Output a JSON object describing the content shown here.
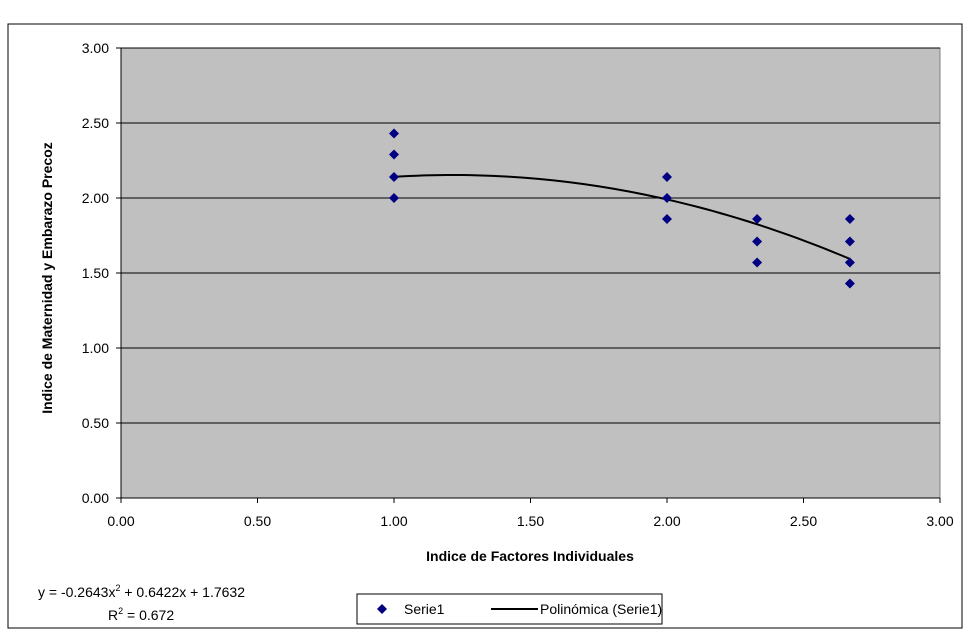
{
  "chart_data": {
    "type": "scatter",
    "title": "",
    "xlabel": "Indice de Factores Individuales",
    "ylabel": "Indice de Maternidad y Embarazo Precoz",
    "xlim": [
      0,
      3
    ],
    "ylim": [
      0,
      3
    ],
    "x_ticks": [
      "0.00",
      "0.50",
      "1.00",
      "1.50",
      "2.00",
      "2.50",
      "3.00"
    ],
    "y_ticks": [
      "0.00",
      "0.50",
      "1.00",
      "1.50",
      "2.00",
      "2.50",
      "3.00"
    ],
    "grid": "horizontal",
    "plot_background": "#c0c0c0",
    "series": [
      {
        "name": "Serie1",
        "marker": "diamond",
        "color": "#000080",
        "points": [
          [
            1.0,
            2.43
          ],
          [
            1.0,
            2.29
          ],
          [
            1.0,
            2.14
          ],
          [
            1.0,
            2.0
          ],
          [
            2.0,
            2.14
          ],
          [
            2.0,
            2.0
          ],
          [
            2.0,
            1.86
          ],
          [
            2.33,
            1.86
          ],
          [
            2.33,
            1.71
          ],
          [
            2.33,
            1.57
          ],
          [
            2.67,
            1.86
          ],
          [
            2.67,
            1.71
          ],
          [
            2.67,
            1.57
          ],
          [
            2.67,
            1.43
          ]
        ]
      }
    ],
    "trendline": {
      "name": "Polinómica (Serie1)",
      "type": "polynomial",
      "coefficients": {
        "a": -0.2643,
        "b": 0.6422,
        "c": 1.7632
      },
      "x_range": [
        1.0,
        2.67
      ],
      "color": "#000000",
      "equation_line": "y = -0.2643x",
      "equation_sup": "2",
      "equation_rest": " + 0.6422x + 1.7632",
      "r2_label": "R",
      "r2_sup": "2",
      "r2_rest": " = 0.672"
    },
    "legend": {
      "position": "bottom",
      "items": [
        "Serie1",
        "Polinómica (Serie1)"
      ]
    }
  }
}
